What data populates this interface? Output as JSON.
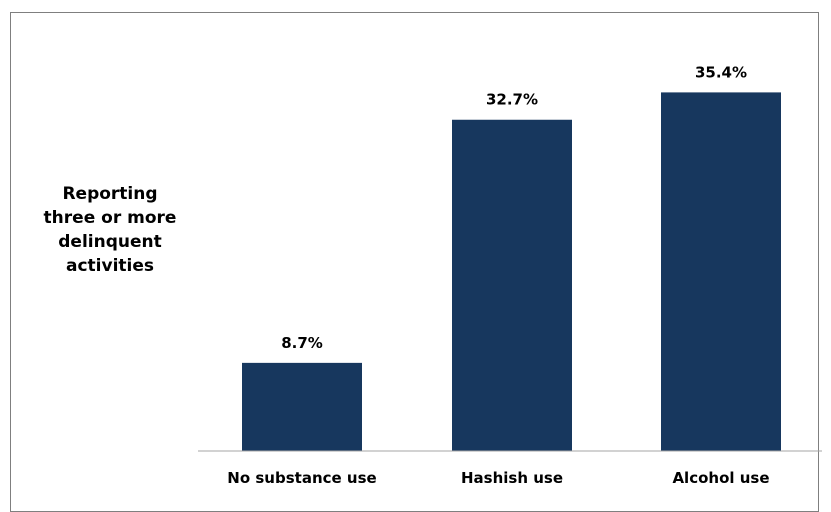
{
  "chart_data": {
    "type": "bar",
    "title": "",
    "xlabel": "",
    "ylabel_lines": [
      "Reporting",
      "three or more",
      "delinquent",
      "activities"
    ],
    "categories": [
      "No substance use",
      "Hashish use",
      "Alcohol use"
    ],
    "values": [
      8.7,
      32.7,
      35.4
    ],
    "data_labels": [
      "8.7%",
      "32.7%",
      "35.4%"
    ],
    "unit": "%",
    "ylim": [
      0,
      40
    ],
    "grid": false,
    "legend": "none",
    "bar_color": "#17375e"
  }
}
